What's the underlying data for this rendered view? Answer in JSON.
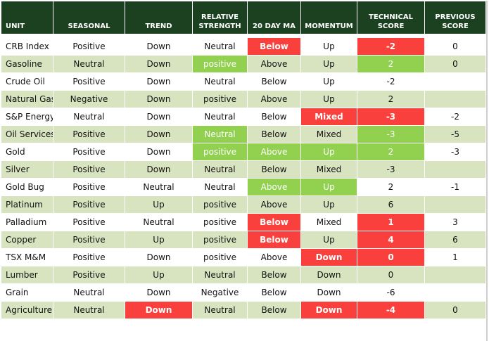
{
  "colors": {
    "header_bg": "#1b4121",
    "row_band": "#d8e4c0",
    "highlight_red": "#f9403c",
    "highlight_green": "#92d050"
  },
  "headers": {
    "unit": "UNIT",
    "seasonal": "SEASONAL",
    "trend": "TREND",
    "relative_strength": "RELATIVE STRENGTH",
    "ma20": "20 DAY MA",
    "momentum": "MOMENTUM",
    "technical_score": "TECHNICAL SCORE",
    "previous_score": "PREVIOUS SCORE"
  },
  "rows": [
    {
      "unit": "CRB Index",
      "seasonal": "Positive",
      "trend": "Down",
      "rs": "Neutral",
      "ma": "Below",
      "momentum": "Up",
      "score": "-2",
      "prev": "0",
      "hl": {
        "ma": "red",
        "score": "red"
      }
    },
    {
      "unit": "Gasoline",
      "seasonal": "Neutral",
      "trend": "Down",
      "rs": "positive",
      "ma": "Above",
      "momentum": "Up",
      "score": "2",
      "prev": "0",
      "hl": {
        "rs": "green",
        "score": "green"
      }
    },
    {
      "unit": "Crude Oil",
      "seasonal": "Positive",
      "trend": "Down",
      "rs": "Neutral",
      "ma": "Below",
      "momentum": "Up",
      "score": "-2",
      "prev": "",
      "hl": {}
    },
    {
      "unit": "Natural Gas",
      "seasonal": "Negative",
      "trend": "Down",
      "rs": "positive",
      "ma": "Above",
      "momentum": "Up",
      "score": "2",
      "prev": "",
      "hl": {}
    },
    {
      "unit": "S&P Energy",
      "seasonal": "Neutral",
      "trend": "Down",
      "rs": "Neutral",
      "ma": "Below",
      "momentum": "Mixed",
      "score": "-3",
      "prev": "-2",
      "hl": {
        "momentum": "red",
        "score": "red"
      }
    },
    {
      "unit": "Oil Services",
      "seasonal": "Positive",
      "trend": "Down",
      "rs": "Neutral",
      "ma": "Below",
      "momentum": "Mixed",
      "score": "-3",
      "prev": "-5",
      "hl": {
        "rs": "green",
        "score": "green"
      }
    },
    {
      "unit": "Gold",
      "seasonal": "Positive",
      "trend": "Down",
      "rs": "positive",
      "ma": "Above",
      "momentum": "Up",
      "score": "2",
      "prev": "-3",
      "hl": {
        "rs": "green",
        "ma": "green",
        "momentum": "green",
        "score": "green"
      }
    },
    {
      "unit": "Silver",
      "seasonal": "Positive",
      "trend": "Down",
      "rs": "Neutral",
      "ma": "Below",
      "momentum": "Mixed",
      "score": "-3",
      "prev": "",
      "hl": {}
    },
    {
      "unit": "Gold Bug",
      "seasonal": "Positive",
      "trend": "Neutral",
      "rs": "Neutral",
      "ma": "Above",
      "momentum": "Up",
      "score": "2",
      "prev": "-1",
      "hl": {
        "ma": "green",
        "momentum": "green"
      }
    },
    {
      "unit": "Platinum",
      "seasonal": "Positive",
      "trend": "Up",
      "rs": "positive",
      "ma": "Above",
      "momentum": "Up",
      "score": "6",
      "prev": "",
      "hl": {}
    },
    {
      "unit": "Palladium",
      "seasonal": "Positive",
      "trend": "Neutral",
      "rs": "positive",
      "ma": "Below",
      "momentum": "Mixed",
      "score": "1",
      "prev": "3",
      "hl": {
        "ma": "red",
        "score": "red"
      }
    },
    {
      "unit": "Copper",
      "seasonal": "Positive",
      "trend": "Up",
      "rs": "positive",
      "ma": "Below",
      "momentum": "Up",
      "score": "4",
      "prev": "6",
      "hl": {
        "ma": "red",
        "score": "red"
      }
    },
    {
      "unit": "TSX M&M",
      "seasonal": "Positive",
      "trend": "Down",
      "rs": "positive",
      "ma": "Above",
      "momentum": "Down",
      "score": "0",
      "prev": "1",
      "hl": {
        "momentum": "red",
        "score": "red"
      }
    },
    {
      "unit": "Lumber",
      "seasonal": "Positive",
      "trend": "Up",
      "rs": "Neutral",
      "ma": "Below",
      "momentum": "Down",
      "score": "0",
      "prev": "",
      "hl": {}
    },
    {
      "unit": "Grain",
      "seasonal": "Neutral",
      "trend": "Down",
      "rs": "Negative",
      "ma": "Below",
      "momentum": "Down",
      "score": "-6",
      "prev": "",
      "hl": {}
    },
    {
      "unit": "Agriculture",
      "seasonal": "Neutral",
      "trend": "Down",
      "rs": "Neutral",
      "ma": "Below",
      "momentum": "Down",
      "score": "-4",
      "prev": "0",
      "hl": {
        "trend": "red",
        "momentum": "red",
        "score": "red"
      }
    }
  ]
}
